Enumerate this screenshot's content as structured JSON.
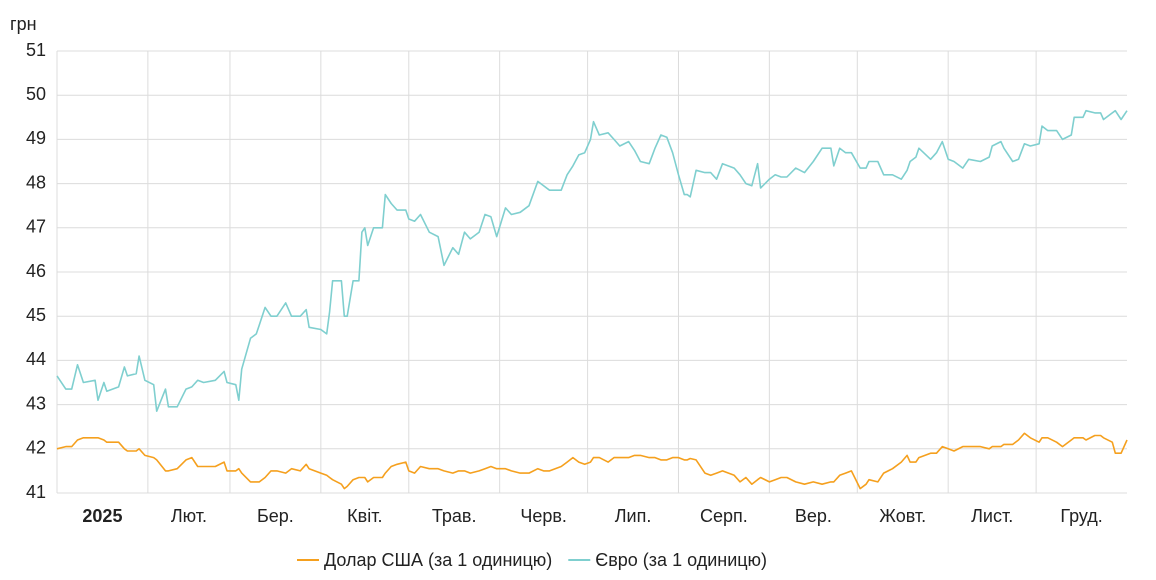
{
  "chart_data": {
    "type": "line",
    "y_label": "грн",
    "x": [
      0,
      3,
      5,
      7,
      9,
      13,
      14,
      16,
      17,
      21,
      23,
      24,
      27,
      28,
      30,
      33,
      34,
      37,
      38,
      41,
      44,
      46,
      48,
      50,
      54,
      57,
      58,
      61,
      62,
      63,
      66,
      68,
      69,
      71,
      73,
      75,
      78,
      80,
      83,
      85,
      86,
      90,
      92,
      93,
      94,
      97,
      98,
      99,
      101,
      103,
      104,
      105,
      106,
      108,
      111,
      112,
      114,
      116,
      119,
      120,
      122,
      124,
      127,
      130,
      132,
      135,
      137,
      139,
      141,
      144,
      146,
      148,
      150,
      153,
      155,
      158,
      161,
      164,
      166,
      168,
      172,
      174,
      176,
      178,
      180,
      182,
      183,
      185,
      188,
      190,
      192,
      195,
      197,
      199,
      202,
      204,
      206,
      208,
      210,
      212,
      214,
      215,
      216,
      218,
      221,
      223,
      225,
      227,
      231,
      233,
      235,
      237,
      239,
      240,
      243,
      245,
      247,
      249,
      252,
      255,
      258,
      261,
      264,
      265,
      267,
      269,
      271,
      274,
      276,
      277,
      280,
      282,
      285,
      288,
      290,
      291,
      293,
      294,
      298,
      300,
      302,
      304,
      306,
      309,
      311,
      315,
      318,
      319,
      322,
      323,
      326,
      328,
      330,
      332,
      335,
      336,
      338,
      341,
      343,
      346,
      347,
      350,
      351,
      354,
      356,
      357,
      360,
      361,
      363,
      365
    ],
    "series": [
      {
        "name": "Долар США (за 1 одиницю)",
        "color": "#f5a01e",
        "values": [
          42.0,
          42.05,
          42.05,
          42.2,
          42.25,
          42.25,
          42.25,
          42.2,
          42.15,
          42.15,
          42.0,
          41.95,
          41.95,
          42.0,
          41.85,
          41.8,
          41.75,
          41.5,
          41.5,
          41.55,
          41.75,
          41.8,
          41.6,
          41.6,
          41.6,
          41.7,
          41.5,
          41.5,
          41.55,
          41.45,
          41.25,
          41.25,
          41.25,
          41.35,
          41.5,
          41.5,
          41.45,
          41.55,
          41.5,
          41.65,
          41.55,
          41.45,
          41.4,
          41.35,
          41.3,
          41.2,
          41.1,
          41.15,
          41.3,
          41.35,
          41.35,
          41.35,
          41.25,
          41.35,
          41.35,
          41.45,
          41.6,
          41.65,
          41.7,
          41.5,
          41.45,
          41.6,
          41.55,
          41.55,
          41.5,
          41.45,
          41.5,
          41.5,
          41.45,
          41.5,
          41.55,
          41.6,
          41.55,
          41.55,
          41.5,
          41.45,
          41.45,
          41.55,
          41.5,
          41.5,
          41.6,
          41.7,
          41.8,
          41.7,
          41.65,
          41.7,
          41.8,
          41.8,
          41.7,
          41.8,
          41.8,
          41.8,
          41.85,
          41.85,
          41.8,
          41.8,
          41.75,
          41.75,
          41.8,
          41.8,
          41.75,
          41.75,
          41.78,
          41.75,
          41.45,
          41.4,
          41.45,
          41.5,
          41.4,
          41.25,
          41.35,
          41.2,
          41.3,
          41.35,
          41.25,
          41.3,
          41.35,
          41.35,
          41.25,
          41.2,
          41.25,
          41.2,
          41.25,
          41.25,
          41.4,
          41.45,
          41.5,
          41.1,
          41.2,
          41.3,
          41.25,
          41.45,
          41.55,
          41.7,
          41.85,
          41.7,
          41.7,
          41.8,
          41.9,
          41.9,
          42.05,
          42.0,
          41.95,
          42.05,
          42.05,
          42.05,
          42.0,
          42.05,
          42.05,
          42.1,
          42.1,
          42.2,
          42.35,
          42.25,
          42.15,
          42.25,
          42.25,
          42.15,
          42.05,
          42.2,
          42.25,
          42.25,
          42.2,
          42.3,
          42.3,
          42.25,
          42.15,
          41.9,
          41.9,
          42.2
        ]
      },
      {
        "name": "Євро (за 1 одиницю)",
        "color": "#7fcfcf",
        "values": [
          43.65,
          43.35,
          43.35,
          43.9,
          43.5,
          43.55,
          43.1,
          43.5,
          43.3,
          43.4,
          43.85,
          43.65,
          43.7,
          44.1,
          43.55,
          43.45,
          42.85,
          43.35,
          42.95,
          42.95,
          43.35,
          43.4,
          43.55,
          43.5,
          43.55,
          43.75,
          43.5,
          43.45,
          43.1,
          43.8,
          44.5,
          44.6,
          44.8,
          45.2,
          45.0,
          45.0,
          45.3,
          45.0,
          45.0,
          45.15,
          44.75,
          44.7,
          44.6,
          45.1,
          45.8,
          45.8,
          45.0,
          45.0,
          45.8,
          45.8,
          46.9,
          47.0,
          46.6,
          47.0,
          47.0,
          47.75,
          47.55,
          47.4,
          47.4,
          47.2,
          47.15,
          47.3,
          46.9,
          46.8,
          46.15,
          46.55,
          46.4,
          46.9,
          46.75,
          46.9,
          47.3,
          47.25,
          46.8,
          47.45,
          47.3,
          47.35,
          47.5,
          48.05,
          47.95,
          47.85,
          47.85,
          48.2,
          48.4,
          48.65,
          48.7,
          49.0,
          49.4,
          49.1,
          49.15,
          49.0,
          48.85,
          48.95,
          48.75,
          48.5,
          48.45,
          48.8,
          49.1,
          49.05,
          48.7,
          48.2,
          47.75,
          47.75,
          47.7,
          48.3,
          48.25,
          48.25,
          48.1,
          48.45,
          48.35,
          48.2,
          48.0,
          47.95,
          48.45,
          47.9,
          48.1,
          48.2,
          48.15,
          48.15,
          48.35,
          48.25,
          48.5,
          48.8,
          48.8,
          48.4,
          48.8,
          48.7,
          48.7,
          48.35,
          48.35,
          48.5,
          48.5,
          48.2,
          48.2,
          48.1,
          48.3,
          48.5,
          48.6,
          48.8,
          48.55,
          48.7,
          48.95,
          48.55,
          48.5,
          48.35,
          48.55,
          48.5,
          48.6,
          48.85,
          48.95,
          48.8,
          48.5,
          48.55,
          48.9,
          48.85,
          48.9,
          49.3,
          49.2,
          49.2,
          49.0,
          49.1,
          49.5,
          49.5,
          49.65,
          49.6,
          49.6,
          49.45,
          49.6,
          49.65,
          49.45,
          49.65
        ]
      }
    ],
    "xlim": [
      0,
      365
    ],
    "xticks": [
      {
        "value": 0,
        "label": "2025"
      },
      {
        "value": 31,
        "label": "Лют."
      },
      {
        "value": 59,
        "label": "Бер."
      },
      {
        "value": 90,
        "label": "Квіт."
      },
      {
        "value": 120,
        "label": "Трав."
      },
      {
        "value": 151,
        "label": "Черв."
      },
      {
        "value": 181,
        "label": "Лип."
      },
      {
        "value": 212,
        "label": "Серп."
      },
      {
        "value": 243,
        "label": "Вер."
      },
      {
        "value": 273,
        "label": "Жовт."
      },
      {
        "value": 304,
        "label": "Лист."
      },
      {
        "value": 334,
        "label": "Груд."
      }
    ],
    "ylim": [
      41,
      51
    ],
    "yticks": [
      41,
      42,
      43,
      44,
      45,
      46,
      47,
      48,
      49,
      50,
      51
    ],
    "grid": true
  }
}
